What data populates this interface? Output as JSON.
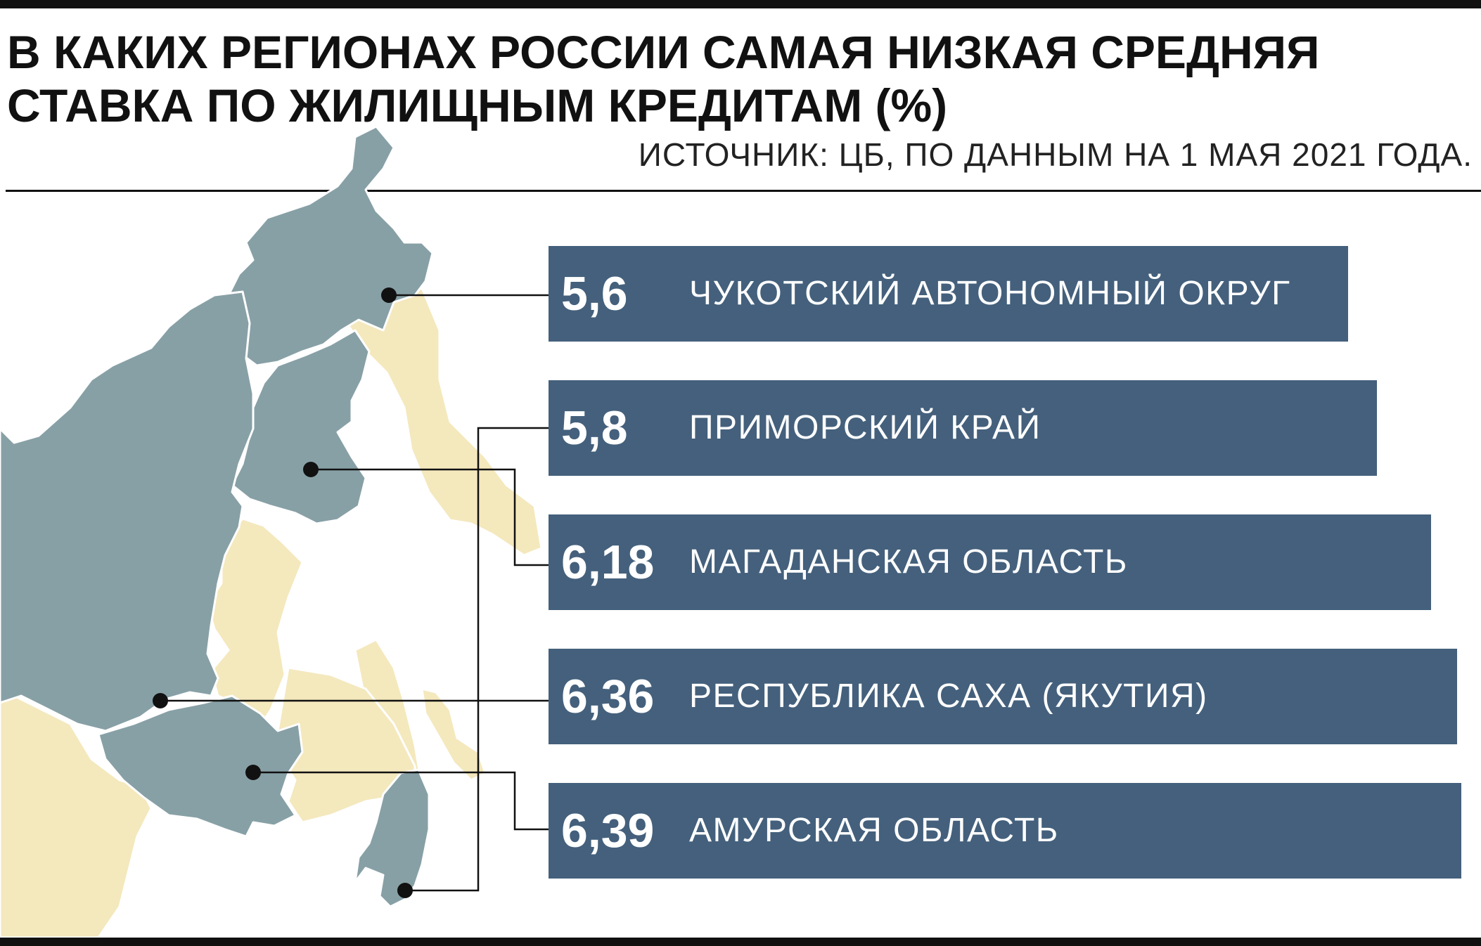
{
  "title": "В КАКИХ РЕГИОНАХ РОССИИ САМАЯ НИЗКАЯ СРЕДНЯЯ СТАВКА ПО ЖИЛИЩНЫМ КРЕДИТАМ (%)",
  "source": "ИСТОЧНИК: ЦБ, ПО ДАННЫМ НА 1 МАЯ 2021 ГОДА.",
  "colors": {
    "bar": "#44607c",
    "highlighted_region": "#87a0a6",
    "other_region": "#f4e8bd",
    "rule": "#111111"
  },
  "chart_data": {
    "type": "bar",
    "orientation": "horizontal",
    "categories": [
      "ЧУКОТСКИЙ АВТОНОМНЫЙ ОКРУГ",
      "ПРИМОРСКИЙ КРАЙ",
      "МАГАДАНСКАЯ ОБЛАСТЬ",
      "РЕСПУБЛИКА САХА (ЯКУТИЯ)",
      "АМУРСКАЯ ОБЛАСТЬ"
    ],
    "values": [
      5.6,
      5.8,
      6.18,
      6.36,
      6.39
    ],
    "value_labels": [
      "5,6",
      "5,8",
      "6,18",
      "6,36",
      "6,39"
    ],
    "xlim": [
      0,
      6.5
    ]
  }
}
